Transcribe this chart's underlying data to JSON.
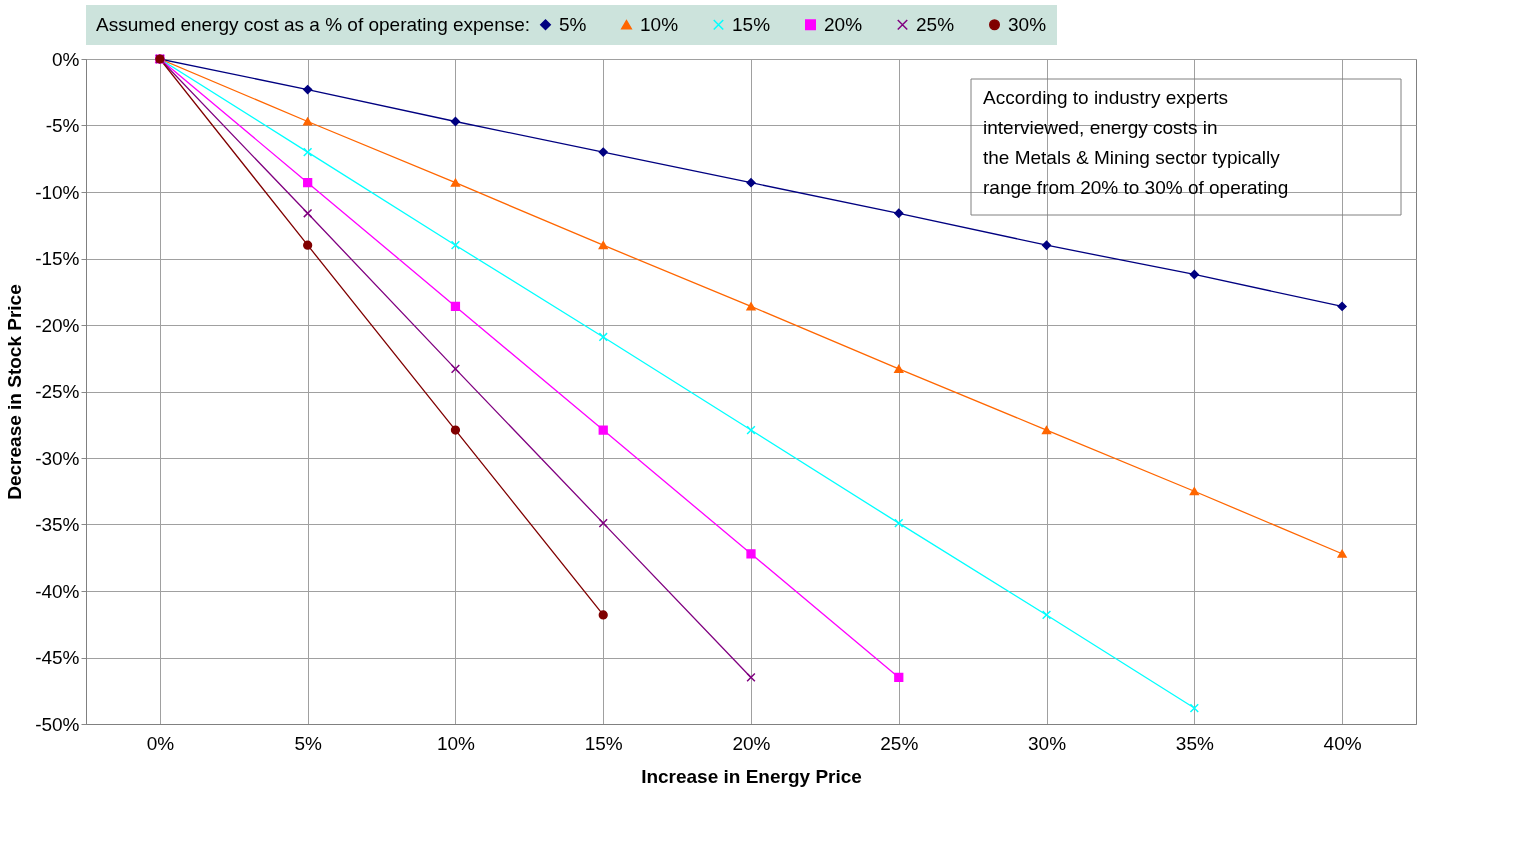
{
  "chart_data": {
    "type": "line",
    "xlabel": "Increase in Energy Price",
    "ylabel": "Decrease in Stock Price",
    "legend_title": "Assumed energy cost as a % of operating expense:",
    "legend": "top",
    "grid": true,
    "line_style": "solid",
    "categories": [
      "0%",
      "5%",
      "10%",
      "15%",
      "20%",
      "25%",
      "30%",
      "35%",
      "40%"
    ],
    "ylim": [
      -50,
      0
    ],
    "yticks": [
      {
        "value": 0,
        "label": "0%"
      },
      {
        "value": -5,
        "label": "-5%"
      },
      {
        "value": -10,
        "label": "-10%"
      },
      {
        "value": -15,
        "label": "-15%"
      },
      {
        "value": -20,
        "label": "-20%"
      },
      {
        "value": -25,
        "label": "-25%"
      },
      {
        "value": -30,
        "label": "-30%"
      },
      {
        "value": -35,
        "label": "-35%"
      },
      {
        "value": -40,
        "label": "-40%"
      },
      {
        "value": -45,
        "label": "-45%"
      },
      {
        "value": -50,
        "label": "-50%"
      }
    ],
    "annotations": [
      "According to industry experts\ninterviewed, energy costs in\nthe Metals & Mining sector typically\nrange from 20% to 30% of operating"
    ],
    "series": [
      {
        "name": "5%",
        "color": "#000080",
        "marker": "diamond",
        "values": [
          0,
          -2.3,
          -4.7,
          -7.0,
          -9.3,
          -11.6,
          -14.0,
          -16.2,
          -18.6
        ]
      },
      {
        "name": "10%",
        "color": "#ff6600",
        "marker": "triangle",
        "values": [
          0,
          -4.7,
          -9.3,
          -14.0,
          -18.6,
          -23.3,
          -27.9,
          -32.5,
          -37.2
        ]
      },
      {
        "name": "15%",
        "color": "#00ffff",
        "marker": "cross",
        "values": [
          0,
          -7.0,
          -14.0,
          -20.9,
          -27.9,
          -34.9,
          -41.8,
          -48.8,
          null
        ]
      },
      {
        "name": "20%",
        "color": "#ff00ff",
        "marker": "square",
        "values": [
          0,
          -9.3,
          -18.6,
          -27.9,
          -37.2,
          -46.5,
          null,
          null,
          null
        ]
      },
      {
        "name": "25%",
        "color": "#800080",
        "marker": "cross",
        "values": [
          0,
          -11.6,
          -23.3,
          -34.9,
          -46.5,
          null,
          null,
          null,
          null
        ]
      },
      {
        "name": "30%",
        "color": "#800000",
        "marker": "circle",
        "values": [
          0,
          -14.0,
          -27.9,
          -41.8,
          null,
          null,
          null,
          null,
          null
        ]
      }
    ]
  }
}
